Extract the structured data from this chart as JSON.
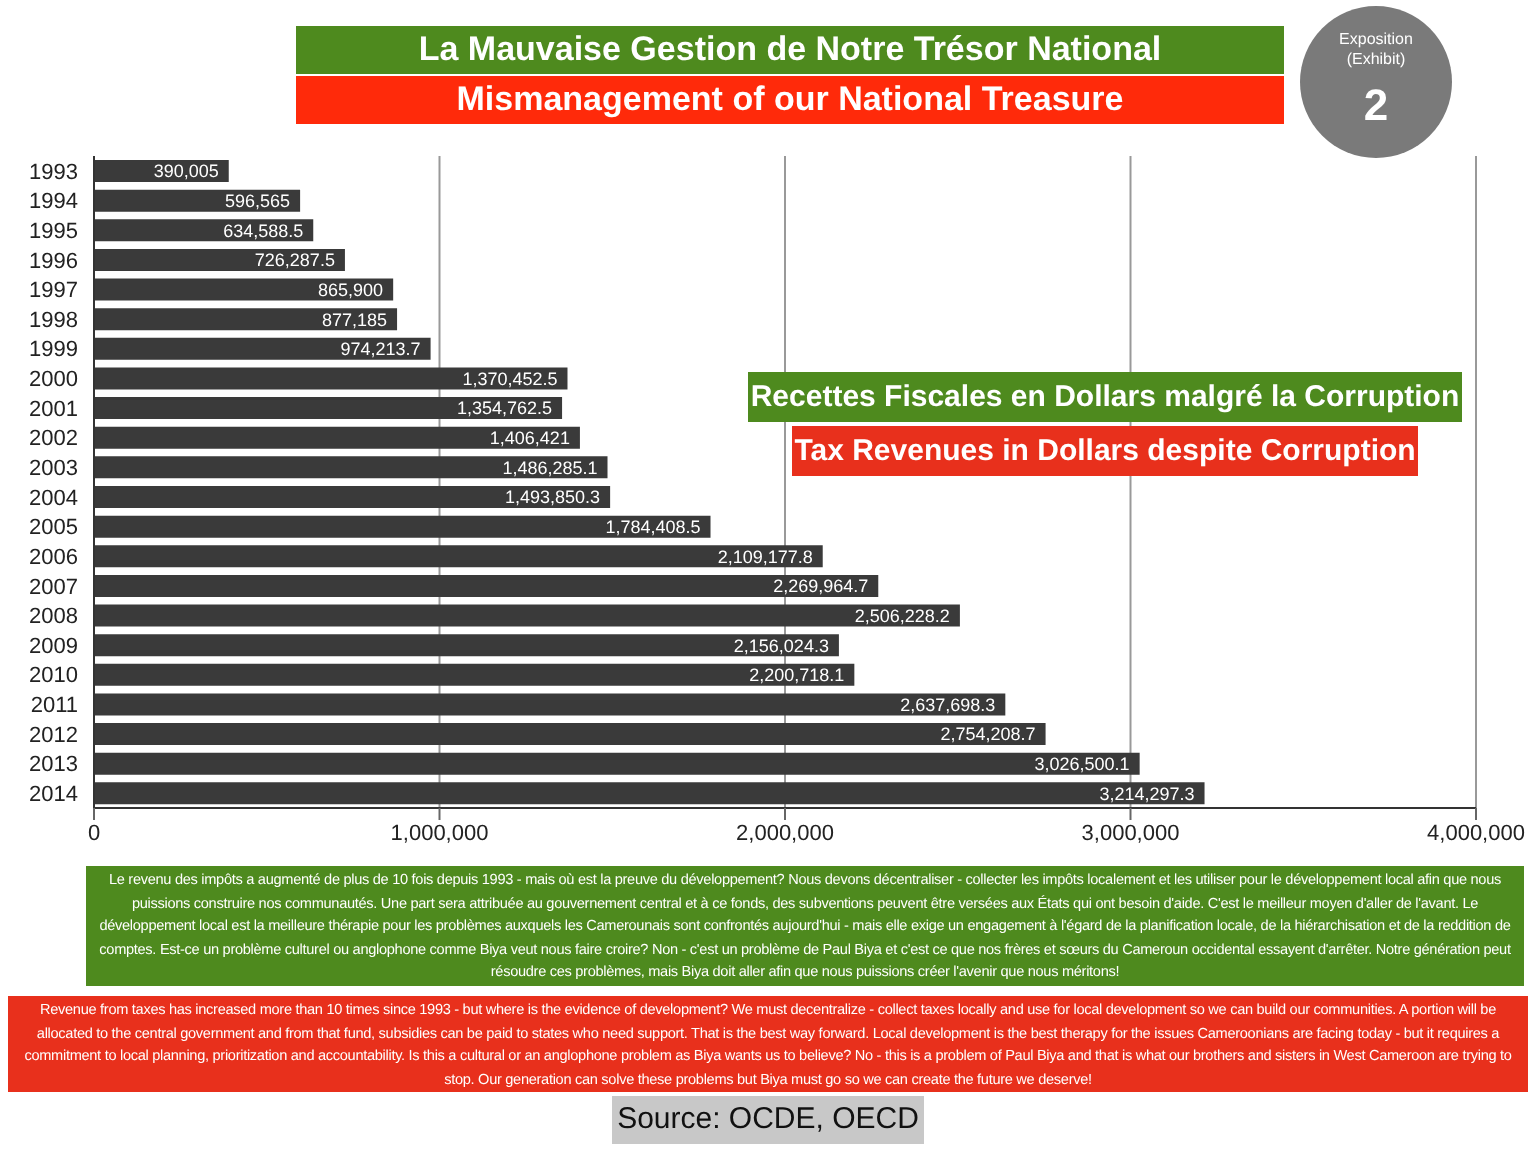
{
  "chart_data": {
    "type": "bar",
    "orientation": "horizontal",
    "title": "La Mauvaise Gestion de Notre Trésor National",
    "subtitle": "Mismanagement of our National Treasure",
    "categories": [
      "1993",
      "1994",
      "1995",
      "1996",
      "1997",
      "1998",
      "1999",
      "2000",
      "2001",
      "2002",
      "2003",
      "2004",
      "2005",
      "2006",
      "2007",
      "2008",
      "2009",
      "2010",
      "2011",
      "2012",
      "2013",
      "2014"
    ],
    "values": [
      390005,
      596565,
      634588.5,
      726287.5,
      865900,
      877185,
      974213.7,
      1370452.5,
      1354762.5,
      1406421,
      1486285.1,
      1493850.3,
      1784408.5,
      2109177.8,
      2269964.7,
      2506228.2,
      2156024.3,
      2200718.1,
      2637698.3,
      2754208.7,
      3026500.1,
      3214297.3
    ],
    "value_labels": [
      "390,005",
      "596,565",
      "634,588.5",
      "726,287.5",
      "865,900",
      "877,185",
      "974,213.7",
      "1,370,452.5",
      "1,354,762.5",
      "1,406,421",
      "1,486,285.1",
      "1,493,850.3",
      "1,784,408.5",
      "2,109,177.8",
      "2,269,964.7",
      "2,506,228.2",
      "2,156,024.3",
      "2,200,718.1",
      "2,637,698.3",
      "2,754,208.7",
      "3,026,500.1",
      "3,214,297.3"
    ],
    "color": "#3a3a3a",
    "xlim": [
      0,
      4000000
    ],
    "xticks": [
      {
        "value": 0,
        "label": "0"
      },
      {
        "value": 1000000,
        "label": "1,000,000"
      },
      {
        "value": 2000000,
        "label": "2,000,000"
      },
      {
        "value": 3000000,
        "label": "3,000,000"
      },
      {
        "value": 4000000,
        "label": "4,000,000"
      }
    ],
    "grid": "x",
    "annotations": [
      "Exposition\n(Exhibit)",
      "2",
      "Recettes Fiscales en Dollars malgré la Corruption",
      "Tax Revenues in Dollars despite Corruption",
      "Le revenu des impôts a augmenté de plus de 10 fois depuis 1993 - mais où est la preuve du développement? Nous devons décentraliser - collecter les impôts localement et les utiliser pour le développement local afin que nous puissions construire nos communautés. Une part sera attribuée au gouvernement central et à ce fonds, des subventions peuvent être versées aux États qui ont besoin d'aide. C'est le meilleur moyen d'aller de l'avant. Le développement local est la meilleure thérapie pour les problèmes auxquels les Camerounais sont confrontés aujourd'hui - mais elle exige un engagement à l'égard de la planification locale, de la hiérarchisation et de la reddition de comptes. Est-ce un problème culturel ou anglophone comme Biya veut nous faire croire? Non - c'est un problème de Paul Biya et c'est ce que nos frères et sœurs du Cameroun occidental essayent d'arrêter. Notre génération peut résoudre ces problèmes, mais Biya doit aller afin que nous puissions créer l'avenir que nous méritons!",
      "Revenue from taxes has increased more than 10 times since 1993 - but where is the evidence of development? We must decentralize - collect taxes locally and use for local development so we can build our communities. A portion will be allocated to the central government and from that fund, subsidies can be paid to states who need support. That is the best way forward. Local development is the best therapy for the issues Cameroonians are facing today - but it requires a commitment to local planning, prioritization and accountability. Is this a cultural or an anglophone problem as Biya wants us to believe? No - this is a problem of Paul Biya and that is what our brothers and sisters in West Cameroon are trying to stop. Our generation can solve these problems but Biya must go so we can create the future we deserve!",
      "Source: OCDE, OECD"
    ]
  }
}
